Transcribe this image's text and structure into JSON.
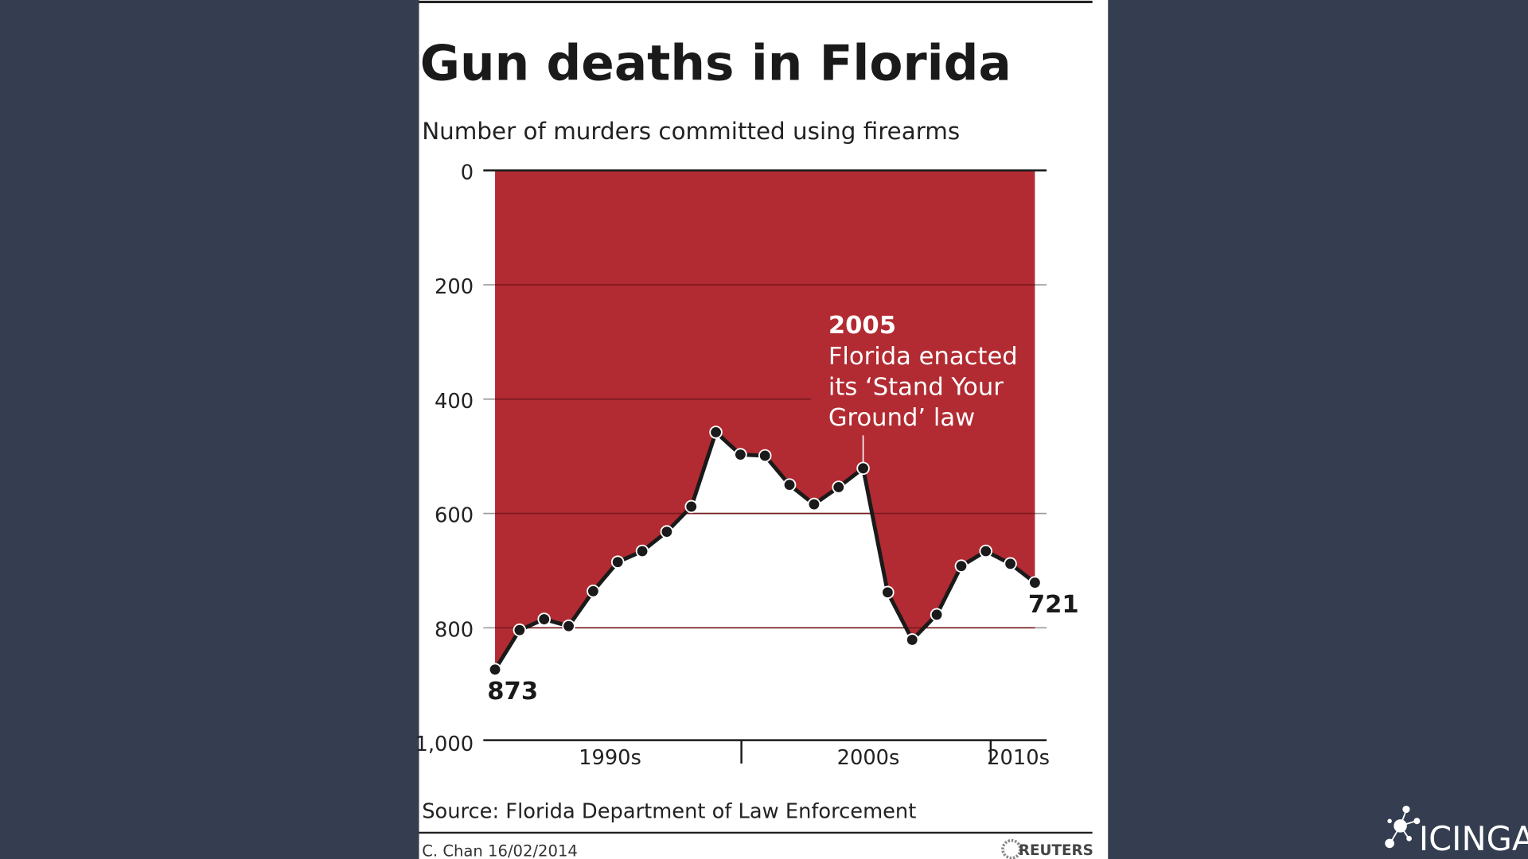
{
  "chart_data": {
    "type": "area",
    "title": "Gun deaths in Florida",
    "subtitle": "Number of murders committed using firearms",
    "y_axis": {
      "inverted": true,
      "ylim": [
        0,
        1000
      ],
      "ticks": [
        "0",
        "200",
        "400",
        "600",
        "800",
        "1,000"
      ],
      "tick_values": [
        0,
        200,
        400,
        600,
        800,
        1000
      ],
      "grid": true
    },
    "x_axis": {
      "labels": [
        "1990s",
        "2000s",
        "2010s"
      ]
    },
    "x": [
      1990,
      1991,
      1992,
      1993,
      1994,
      1995,
      1996,
      1997,
      1998,
      1999,
      2000,
      2001,
      2002,
      2003,
      2004,
      2005,
      2006,
      2007,
      2008,
      2009,
      2010,
      2011,
      2012
    ],
    "values": [
      873,
      804,
      785,
      797,
      736,
      685,
      666,
      632,
      588,
      458,
      497,
      499,
      550,
      584,
      554,
      521,
      738,
      821,
      777,
      692,
      666,
      688,
      721
    ],
    "data_labels": {
      "first": "873",
      "last": "721"
    },
    "annotation": {
      "year_label": "2005",
      "lines": [
        "Florida enacted",
        "its ‘Stand Your",
        "Ground’ law"
      ]
    },
    "colors": {
      "fill_above_line": "#b0242b",
      "line": "#1a1a1a",
      "panel": "#ffffff",
      "background": "#343e50"
    }
  },
  "footer": {
    "source": "Source: Florida Department of Law Enforcement",
    "credit": "C. Chan  16/02/2014",
    "agency": "REUTERS"
  },
  "branding": {
    "logo_text": "icinga"
  }
}
